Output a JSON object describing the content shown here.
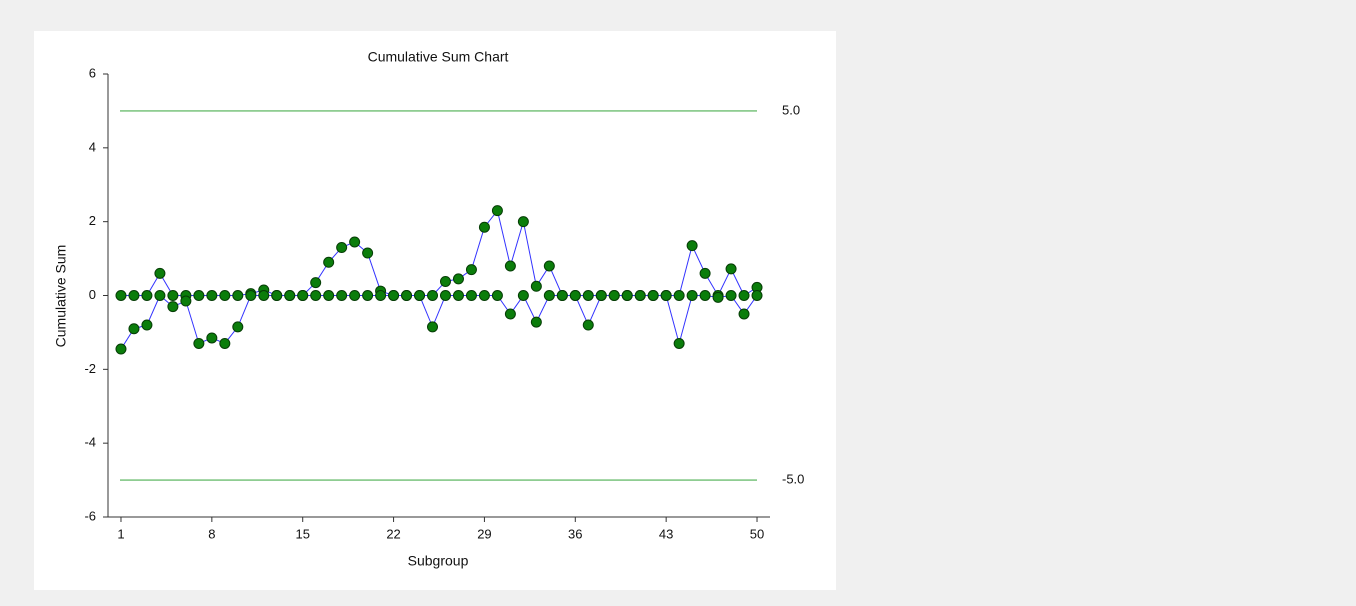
{
  "chart_data": {
    "type": "line",
    "title": "Cumulative Sum Chart",
    "x_label": "Subgroup",
    "y_label": "Cumulative Sum",
    "x": [
      1,
      2,
      3,
      4,
      5,
      6,
      7,
      8,
      9,
      10,
      11,
      12,
      13,
      14,
      15,
      16,
      17,
      18,
      19,
      20,
      21,
      22,
      23,
      24,
      25,
      26,
      27,
      28,
      29,
      30,
      31,
      32,
      33,
      34,
      35,
      36,
      37,
      38,
      39,
      40,
      41,
      42,
      43,
      44,
      45,
      46,
      47,
      48,
      49,
      50
    ],
    "series": [
      {
        "color": "#0b7d0b",
        "line_color": "#3333ff",
        "values": [
          0,
          0,
          0,
          0.6,
          0,
          0,
          0,
          0,
          0,
          0,
          0.05,
          0.15,
          0,
          0,
          0,
          0.35,
          0.9,
          1.3,
          1.45,
          1.15,
          0.12,
          0,
          0,
          0,
          0,
          0.38,
          0.45,
          0.7,
          1.85,
          2.3,
          0.8,
          2.0,
          0.25,
          0.8,
          0,
          0,
          0,
          0,
          0,
          0,
          0,
          0,
          0,
          0,
          1.35,
          0.6,
          0,
          0.72,
          0,
          0.22
        ]
      },
      {
        "color": "#0b7d0b",
        "line_color": "#3333ff",
        "values": [
          -1.45,
          -0.9,
          -0.8,
          0,
          -0.3,
          -0.15,
          -1.3,
          -1.15,
          -1.3,
          -0.85,
          0,
          0,
          0,
          0,
          0,
          0,
          0,
          0,
          0,
          0,
          0,
          0,
          0,
          0,
          -0.85,
          0,
          0,
          0,
          0,
          0,
          -0.5,
          0,
          -0.72,
          0,
          0,
          0,
          -0.8,
          0,
          0,
          0,
          0,
          0,
          0,
          -1.3,
          0,
          0,
          -0.05,
          0,
          -0.5,
          0
        ]
      }
    ],
    "limits": [
      {
        "value": 5,
        "label": "5.0"
      },
      {
        "value": -5,
        "label": "-5.0"
      }
    ],
    "limit_color": "#4caf50",
    "xlim": [
      0,
      51
    ],
    "xticks": [
      1,
      8,
      15,
      22,
      29,
      36,
      43,
      50
    ],
    "ylim": [
      -6,
      6
    ],
    "yticks": [
      -6,
      -4,
      -2,
      0,
      2,
      4,
      6
    ]
  }
}
